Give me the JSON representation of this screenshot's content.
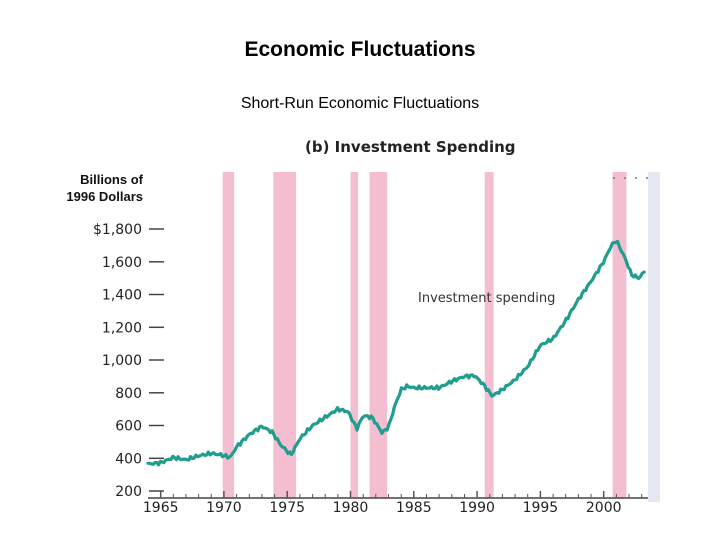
{
  "slide": {
    "title": "Economic Fluctuations",
    "subtitle": "Short-Run Economic Fluctuations"
  },
  "chart_data": {
    "type": "line",
    "title": "(b) Investment Spending",
    "ylabel_line1": "Billions of",
    "ylabel_line2": "1996 Dollars",
    "annotation": "Investment spending",
    "ylim": [
      200,
      1800
    ],
    "xlim": [
      1964,
      2003.5
    ],
    "y_ticks": [
      200,
      400,
      600,
      800,
      1000,
      1200,
      1400,
      1600,
      1800
    ],
    "y_tick_labels": [
      "200",
      "400",
      "600",
      "800",
      "1,000",
      "1,200",
      "1,400",
      "1,600",
      "$1,800"
    ],
    "x_ticks": [
      1965,
      1970,
      1975,
      1980,
      1985,
      1990,
      1995,
      2000
    ],
    "x_tick_labels": [
      "1965",
      "1970",
      "1975",
      "1980",
      "1985",
      "1990",
      "1995",
      "2000"
    ],
    "recessions": [
      [
        1969.9,
        1970.8
      ],
      [
        1973.9,
        1975.7
      ],
      [
        1980.0,
        1980.6
      ],
      [
        1981.5,
        1982.9
      ],
      [
        1990.6,
        1991.3
      ],
      [
        2000.7,
        2001.8
      ]
    ],
    "series": [
      {
        "x": [
          1964.0,
          1965.0,
          1966.0,
          1967.0,
          1968.0,
          1969.0,
          1969.8,
          1970.5,
          1971.0,
          1972.0,
          1973.0,
          1973.8,
          1974.5,
          1975.3,
          1976.0,
          1977.0,
          1978.0,
          1979.0,
          1979.8,
          1980.5,
          1981.0,
          1981.7,
          1982.5,
          1983.0,
          1983.5,
          1984.0,
          1984.5,
          1985.0,
          1986.0,
          1987.0,
          1988.0,
          1989.0,
          1989.8,
          1990.5,
          1991.2,
          1992.0,
          1993.0,
          1994.0,
          1995.0,
          1996.0,
          1997.0,
          1998.0,
          1999.0,
          2000.0,
          2000.6,
          2001.0,
          2001.7,
          2002.2,
          2002.8,
          2003.2
        ],
        "y": [
          365,
          372,
          405,
          390,
          415,
          430,
          420,
          405,
          470,
          545,
          595,
          560,
          480,
          420,
          520,
          600,
          650,
          700,
          685,
          580,
          660,
          650,
          555,
          590,
          720,
          820,
          840,
          830,
          830,
          830,
          870,
          900,
          905,
          850,
          780,
          820,
          880,
          960,
          1090,
          1130,
          1240,
          1370,
          1480,
          1600,
          1700,
          1730,
          1620,
          1520,
          1500,
          1540
        ]
      }
    ]
  }
}
